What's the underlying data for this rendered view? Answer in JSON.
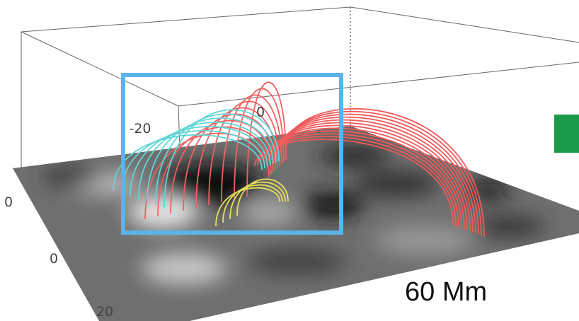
{
  "axis_labels": {
    "top": [
      "-20",
      "0"
    ],
    "left": [
      "0",
      "0",
      "20"
    ]
  },
  "scale_label": "60 Mm"
}
